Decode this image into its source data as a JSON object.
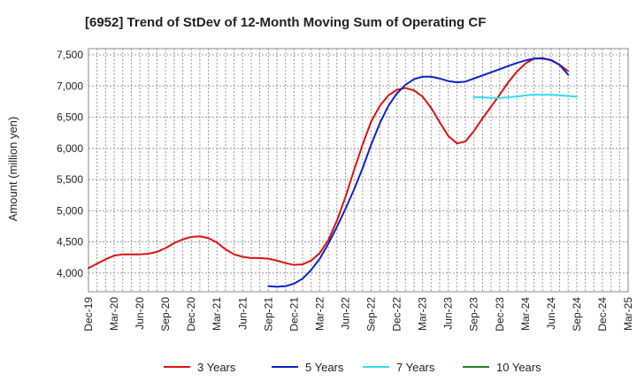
{
  "chart_data": {
    "type": "line",
    "title": "[6952]  Trend of StDev of 12-Month Moving Sum of Operating CF",
    "ylabel": "Amount (million yen)",
    "xlabel": "",
    "ylim": [
      3700,
      7600
    ],
    "yticks": [
      4000,
      4500,
      5000,
      5500,
      6000,
      6500,
      7000,
      7500
    ],
    "ytick_labels": [
      "4,000",
      "4,500",
      "5,000",
      "5,500",
      "6,000",
      "6,500",
      "7,000",
      "7,500"
    ],
    "x_start": "Dec-19",
    "x_months": 63,
    "xtick_labels": [
      "Dec-19",
      "Mar-20",
      "Jun-20",
      "Sep-20",
      "Dec-20",
      "Mar-21",
      "Jun-21",
      "Sep-21",
      "Dec-21",
      "Mar-22",
      "Jun-22",
      "Sep-22",
      "Dec-22",
      "Mar-23",
      "Jun-23",
      "Sep-23",
      "Dec-23",
      "Mar-24",
      "Jun-24",
      "Sep-24",
      "Dec-24",
      "Mar-25"
    ],
    "grid": true,
    "legend_position": "bottom",
    "series": [
      {
        "name": "3 Years",
        "color": "#dd1111",
        "start": "Dec-19",
        "values": [
          4080,
          4150,
          4220,
          4280,
          4300,
          4300,
          4300,
          4310,
          4340,
          4400,
          4480,
          4540,
          4580,
          4590,
          4560,
          4490,
          4380,
          4300,
          4260,
          4240,
          4240,
          4230,
          4200,
          4160,
          4130,
          4140,
          4200,
          4320,
          4530,
          4840,
          5220,
          5650,
          6060,
          6430,
          6680,
          6850,
          6940,
          6970,
          6930,
          6830,
          6650,
          6420,
          6200,
          6080,
          6110,
          6280,
          6480,
          6670,
          6860,
          7060,
          7230,
          7360,
          7440,
          7450,
          7410,
          7340,
          7240
        ]
      },
      {
        "name": "5 Years",
        "color": "#0a22cc",
        "start": "Sep-21",
        "values": [
          3790,
          3780,
          3790,
          3830,
          3910,
          4050,
          4230,
          4470,
          4740,
          5030,
          5340,
          5680,
          6060,
          6400,
          6680,
          6880,
          7020,
          7110,
          7150,
          7150,
          7120,
          7080,
          7060,
          7070,
          7120,
          7170,
          7220,
          7270,
          7320,
          7370,
          7410,
          7440,
          7440,
          7420,
          7340,
          7180
        ]
      },
      {
        "name": "7 Years",
        "color": "#33ddee",
        "start": "Sep-23",
        "values": [
          6820,
          6820,
          6810,
          6810,
          6820,
          6830,
          6850,
          6860,
          6860,
          6860,
          6850,
          6840,
          6830
        ]
      },
      {
        "name": "10 Years",
        "color": "#228822",
        "start": "Sep-24",
        "values": []
      }
    ]
  }
}
